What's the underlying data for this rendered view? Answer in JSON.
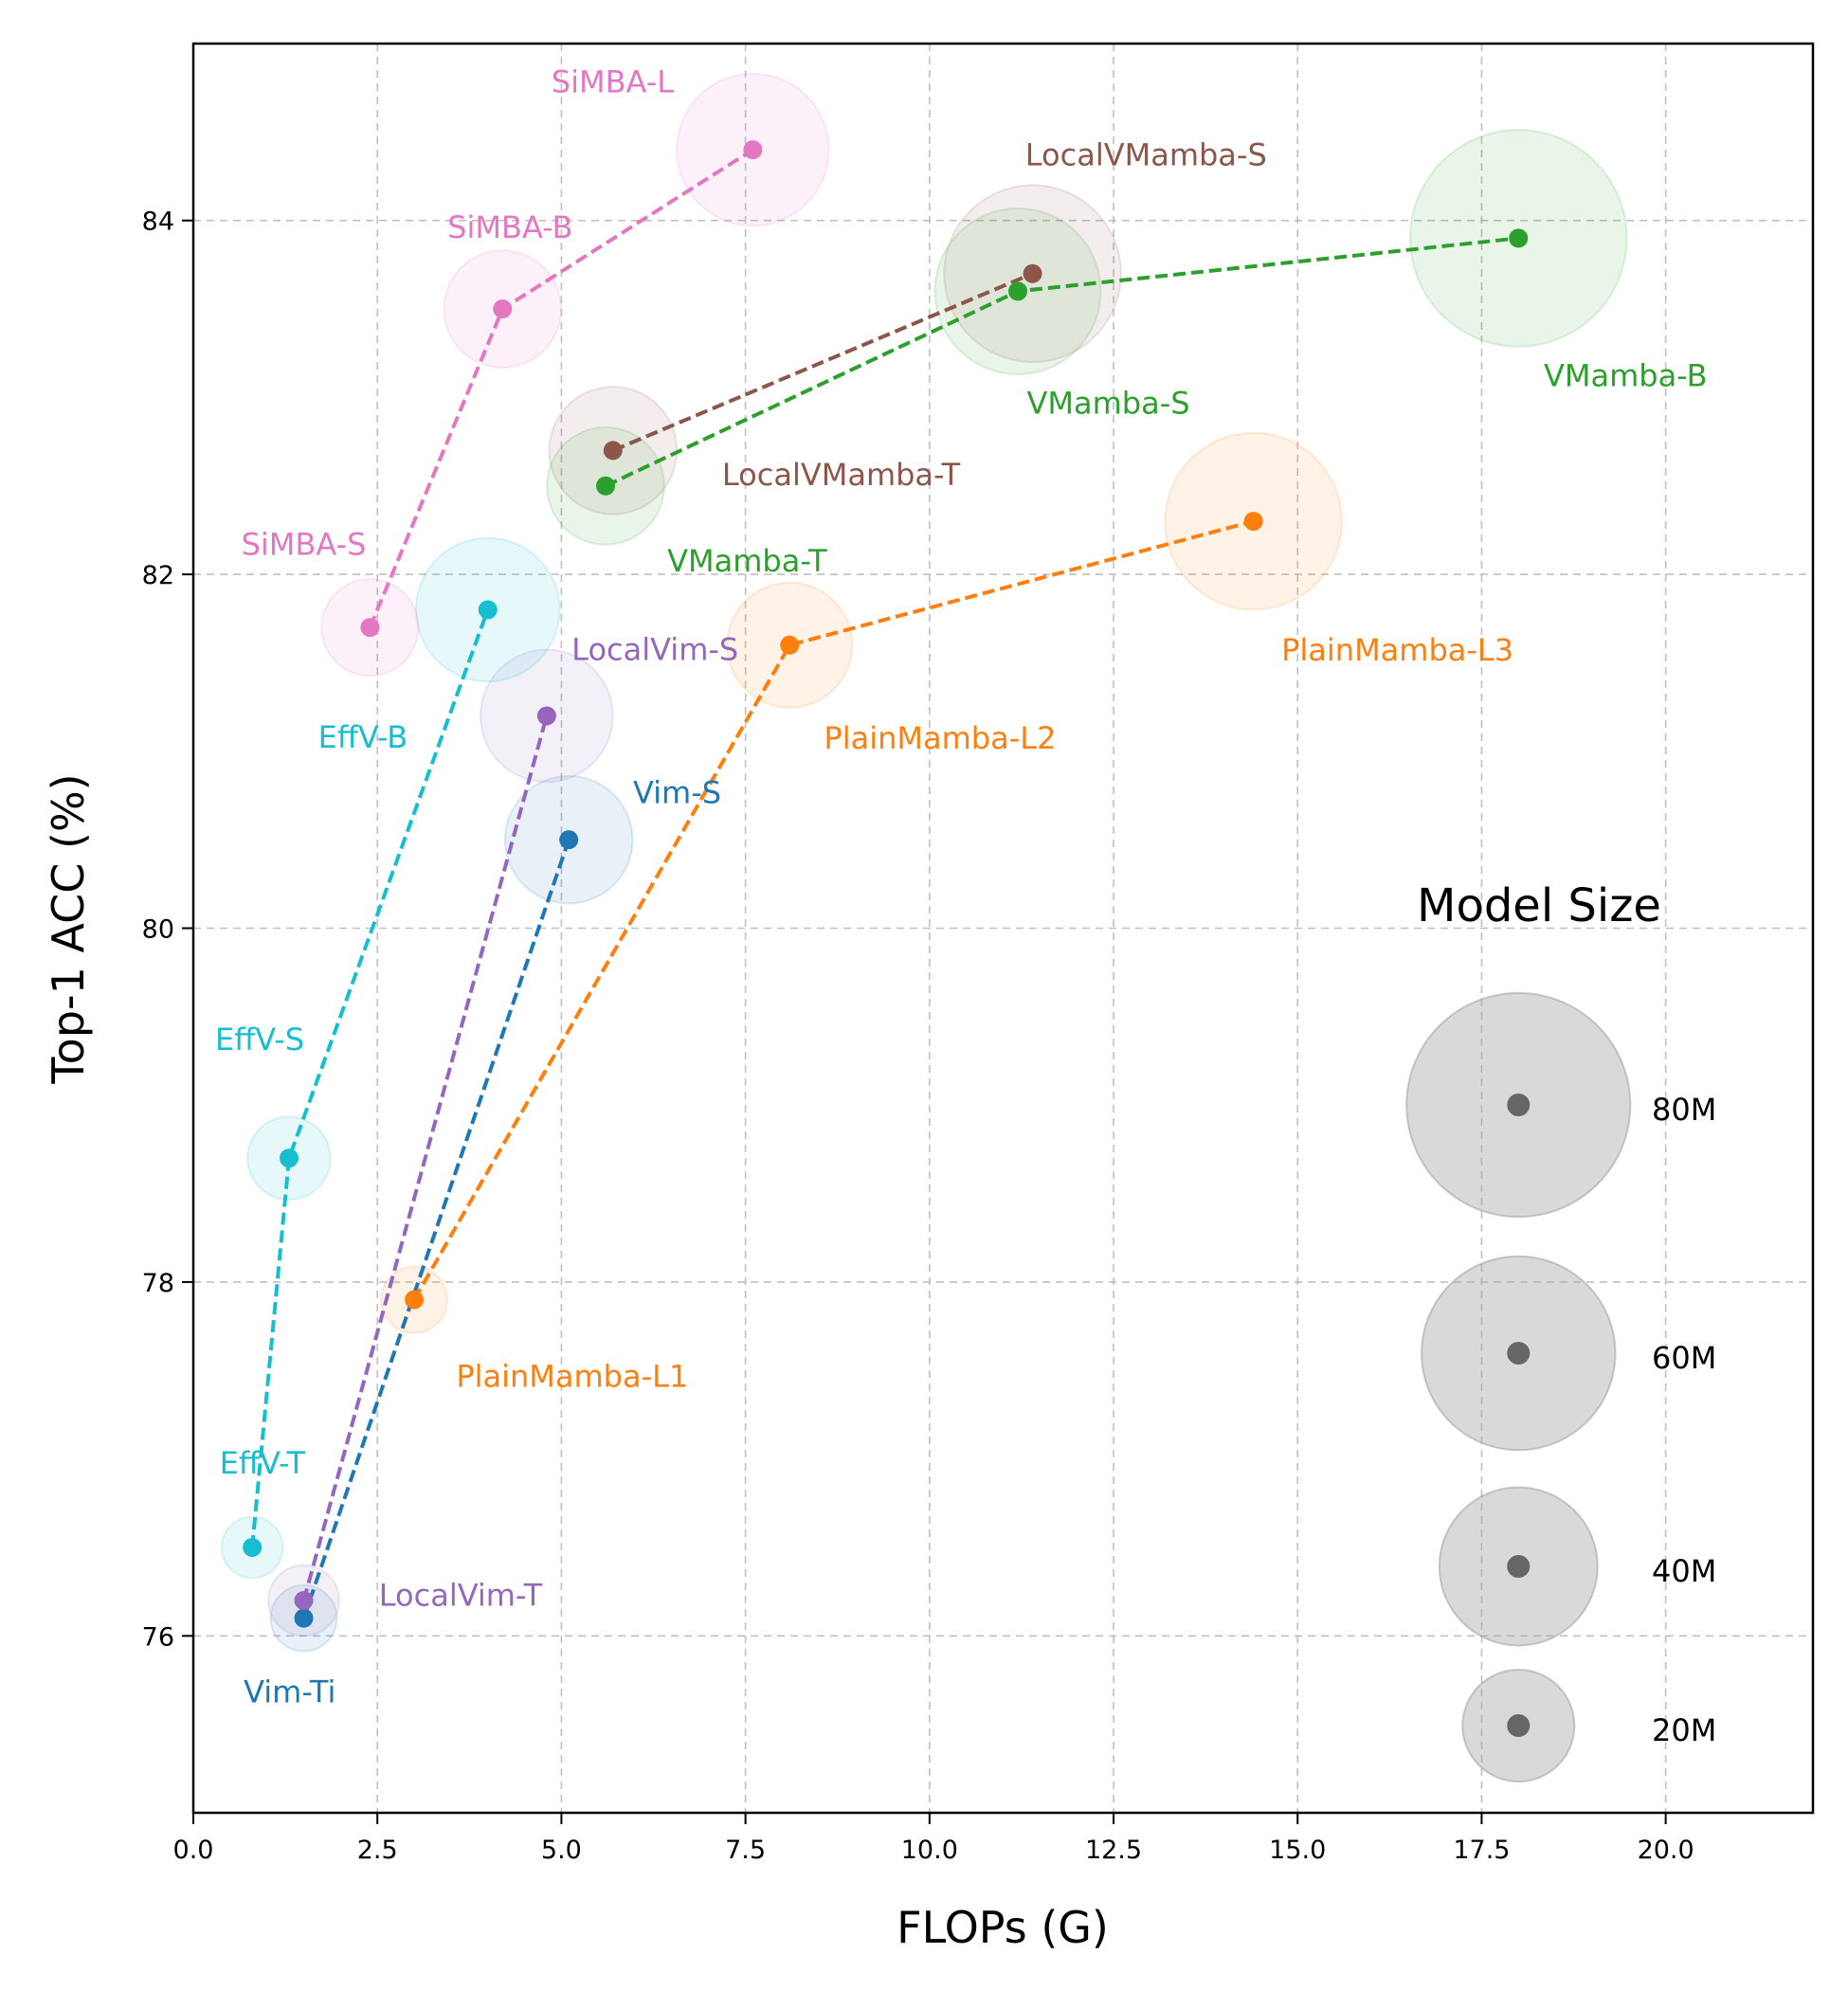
{
  "chart_data": {
    "type": "scatter",
    "xlabel": "FLOPs (G)",
    "ylabel": "Top-1 ACC (%)",
    "xlim": [
      0,
      22
    ],
    "ylim": [
      75,
      85
    ],
    "xticks": [
      "0.0",
      "2.5",
      "5.0",
      "7.5",
      "10.0",
      "12.5",
      "15.0",
      "17.5",
      "20.0"
    ],
    "yticks": [
      "76",
      "78",
      "80",
      "82",
      "84"
    ],
    "grid": true,
    "bubble_size_meaning": "params (M)",
    "series": [
      {
        "color": "#1f77b4",
        "points": [
          {
            "label": "Vim-Ti",
            "x": 1.5,
            "y": 76.1,
            "params": 7
          },
          {
            "label": "Vim-S",
            "x": 5.1,
            "y": 80.5,
            "params": 26
          }
        ]
      },
      {
        "color": "#9467bd",
        "points": [
          {
            "label": "LocalVim-T",
            "x": 1.5,
            "y": 76.2,
            "params": 8
          },
          {
            "label": "LocalVim-S",
            "x": 4.8,
            "y": 81.2,
            "params": 28
          }
        ]
      },
      {
        "color": "#17becf",
        "points": [
          {
            "label": "EffV-T",
            "x": 0.8,
            "y": 76.5,
            "params": 6
          },
          {
            "label": "EffV-S",
            "x": 1.3,
            "y": 78.7,
            "params": 11
          },
          {
            "label": "EffV-B",
            "x": 4.0,
            "y": 81.8,
            "params": 33
          }
        ]
      },
      {
        "color": "#ff7f0e",
        "points": [
          {
            "label": "PlainMamba-L1",
            "x": 3.0,
            "y": 77.9,
            "params": 7
          },
          {
            "label": "PlainMamba-L2",
            "x": 8.1,
            "y": 81.6,
            "params": 25
          },
          {
            "label": "PlainMamba-L3",
            "x": 14.4,
            "y": 82.3,
            "params": 50
          }
        ]
      },
      {
        "color": "#e377c2",
        "points": [
          {
            "label": "SiMBA-S",
            "x": 2.4,
            "y": 81.7,
            "params": 15
          },
          {
            "label": "SiMBA-B",
            "x": 4.2,
            "y": 83.5,
            "params": 22
          },
          {
            "label": "SiMBA-L",
            "x": 7.6,
            "y": 84.4,
            "params": 37
          }
        ]
      },
      {
        "color": "#2ca02c",
        "points": [
          {
            "label": "VMamba-T",
            "x": 5.6,
            "y": 82.5,
            "params": 22
          },
          {
            "label": "VMamba-S",
            "x": 11.2,
            "y": 83.6,
            "params": 44
          },
          {
            "label": "VMamba-B",
            "x": 18.0,
            "y": 83.9,
            "params": 75
          }
        ]
      },
      {
        "color": "#8c564b",
        "points": [
          {
            "label": "LocalVMamba-T",
            "x": 5.7,
            "y": 82.7,
            "params": 26
          },
          {
            "label": "LocalVMamba-S",
            "x": 11.4,
            "y": 83.7,
            "params": 50
          }
        ]
      }
    ],
    "legend": {
      "title": "Model Size",
      "placement": "lower-right",
      "entries": [
        {
          "label": "80M",
          "params": 80
        },
        {
          "label": "60M",
          "params": 60
        },
        {
          "label": "40M",
          "params": 40
        },
        {
          "label": "20M",
          "params": 20
        }
      ]
    }
  }
}
